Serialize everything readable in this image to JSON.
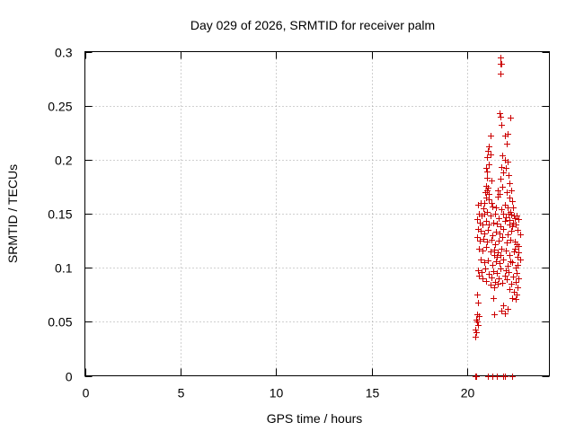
{
  "chart_data": {
    "type": "scatter",
    "title": "Day 029 of 2026, SRMTID for receiver palm",
    "xlabel": "GPS time / hours",
    "ylabel": "SRMTID / TECUs",
    "xlim": [
      0,
      24.3
    ],
    "ylim": [
      0,
      0.3
    ],
    "xticks": [
      0,
      5,
      10,
      15,
      20
    ],
    "yticks": [
      0,
      0.05,
      0.1,
      0.15,
      0.2,
      0.25,
      0.3
    ],
    "xtick_labels": [
      "0",
      "5",
      "10",
      "15",
      "20"
    ],
    "ytick_labels": [
      "0",
      "0.05",
      "0.1",
      "0.15",
      "0.2",
      "0.25",
      "0.3"
    ],
    "grid": true,
    "legend": "none",
    "marker": "+",
    "marker_color": "#cc0000",
    "series": [
      {
        "name": "SRMTID",
        "points": [
          [
            20.4,
            0.0
          ],
          [
            20.45,
            0.0
          ],
          [
            21.3,
            0.0
          ],
          [
            21.55,
            0.0
          ],
          [
            21.9,
            0.0
          ],
          [
            21.95,
            0.0
          ],
          [
            22.35,
            0.0
          ],
          [
            21.1,
            0.0
          ],
          [
            21.75,
            0.295
          ],
          [
            21.78,
            0.289
          ],
          [
            21.72,
            0.289
          ],
          [
            21.75,
            0.28
          ],
          [
            21.7,
            0.243
          ],
          [
            21.75,
            0.24
          ],
          [
            22.25,
            0.239
          ],
          [
            21.8,
            0.232
          ],
          [
            22.1,
            0.224
          ],
          [
            21.95,
            0.222
          ],
          [
            21.2,
            0.222
          ],
          [
            22.05,
            0.215
          ],
          [
            21.15,
            0.212
          ],
          [
            21.1,
            0.208
          ],
          [
            21.2,
            0.205
          ],
          [
            21.05,
            0.202
          ],
          [
            21.85,
            0.204
          ],
          [
            21.95,
            0.2
          ],
          [
            21.12,
            0.196
          ],
          [
            22.1,
            0.198
          ],
          [
            21.0,
            0.192
          ],
          [
            21.05,
            0.189
          ],
          [
            21.8,
            0.193
          ],
          [
            22.0,
            0.192
          ],
          [
            21.9,
            0.188
          ],
          [
            22.15,
            0.186
          ],
          [
            21.75,
            0.182
          ],
          [
            21.25,
            0.181
          ],
          [
            21.0,
            0.176
          ],
          [
            21.1,
            0.174
          ],
          [
            21.05,
            0.172
          ],
          [
            20.95,
            0.17
          ],
          [
            22.2,
            0.178
          ],
          [
            21.85,
            0.175
          ],
          [
            22.3,
            0.172
          ],
          [
            21.7,
            0.168
          ],
          [
            21.0,
            0.165
          ],
          [
            21.15,
            0.163
          ],
          [
            20.9,
            0.16
          ],
          [
            21.6,
            0.166
          ],
          [
            22.2,
            0.165
          ],
          [
            22.35,
            0.162
          ],
          [
            21.95,
            0.158
          ],
          [
            22.1,
            0.156
          ],
          [
            20.55,
            0.158
          ],
          [
            20.7,
            0.16
          ],
          [
            20.85,
            0.155
          ],
          [
            21.3,
            0.157
          ],
          [
            21.5,
            0.156
          ],
          [
            21.8,
            0.154
          ],
          [
            22.4,
            0.156
          ],
          [
            22.25,
            0.152
          ],
          [
            20.6,
            0.15
          ],
          [
            20.75,
            0.148
          ],
          [
            20.9,
            0.15
          ],
          [
            21.05,
            0.152
          ],
          [
            21.2,
            0.148
          ],
          [
            21.45,
            0.15
          ],
          [
            21.65,
            0.146
          ],
          [
            21.9,
            0.15
          ],
          [
            22.0,
            0.147
          ],
          [
            22.15,
            0.15
          ],
          [
            22.3,
            0.149
          ],
          [
            22.45,
            0.148
          ],
          [
            22.6,
            0.148
          ],
          [
            22.5,
            0.146
          ],
          [
            20.5,
            0.145
          ],
          [
            20.65,
            0.142
          ],
          [
            20.8,
            0.14
          ],
          [
            21.0,
            0.143
          ],
          [
            21.15,
            0.14
          ],
          [
            21.35,
            0.142
          ],
          [
            21.55,
            0.141
          ],
          [
            21.75,
            0.138
          ],
          [
            21.95,
            0.143
          ],
          [
            22.2,
            0.14
          ],
          [
            22.4,
            0.142
          ],
          [
            22.55,
            0.14
          ],
          [
            22.7,
            0.145
          ],
          [
            20.55,
            0.136
          ],
          [
            20.7,
            0.134
          ],
          [
            20.9,
            0.132
          ],
          [
            21.1,
            0.135
          ],
          [
            21.3,
            0.13
          ],
          [
            21.5,
            0.133
          ],
          [
            21.7,
            0.132
          ],
          [
            21.9,
            0.136
          ],
          [
            22.1,
            0.131
          ],
          [
            22.3,
            0.134
          ],
          [
            22.65,
            0.135
          ],
          [
            22.75,
            0.131
          ],
          [
            20.5,
            0.128
          ],
          [
            20.65,
            0.125
          ],
          [
            20.85,
            0.127
          ],
          [
            21.05,
            0.124
          ],
          [
            21.25,
            0.126
          ],
          [
            21.45,
            0.122
          ],
          [
            21.65,
            0.125
          ],
          [
            21.85,
            0.128
          ],
          [
            22.05,
            0.123
          ],
          [
            22.25,
            0.126
          ],
          [
            22.5,
            0.124
          ],
          [
            22.7,
            0.12
          ],
          [
            20.6,
            0.118
          ],
          [
            20.8,
            0.116
          ],
          [
            21.0,
            0.119
          ],
          [
            21.2,
            0.115
          ],
          [
            21.4,
            0.117
          ],
          [
            21.6,
            0.114
          ],
          [
            21.8,
            0.118
          ],
          [
            22.0,
            0.116
          ],
          [
            22.2,
            0.112
          ],
          [
            22.45,
            0.115
          ],
          [
            22.65,
            0.11
          ],
          [
            22.75,
            0.108
          ],
          [
            20.7,
            0.108
          ],
          [
            20.9,
            0.105
          ],
          [
            21.1,
            0.107
          ],
          [
            21.3,
            0.103
          ],
          [
            21.5,
            0.106
          ],
          [
            21.7,
            0.104
          ],
          [
            21.9,
            0.108
          ],
          [
            22.1,
            0.102
          ],
          [
            22.35,
            0.105
          ],
          [
            22.55,
            0.1
          ],
          [
            22.65,
            0.103
          ],
          [
            20.55,
            0.098
          ],
          [
            20.75,
            0.096
          ],
          [
            20.95,
            0.099
          ],
          [
            21.15,
            0.094
          ],
          [
            21.35,
            0.097
          ],
          [
            21.55,
            0.095
          ],
          [
            21.75,
            0.099
          ],
          [
            21.95,
            0.093
          ],
          [
            22.15,
            0.096
          ],
          [
            22.4,
            0.092
          ],
          [
            22.6,
            0.095
          ],
          [
            22.7,
            0.09
          ],
          [
            20.6,
            0.093
          ],
          [
            20.8,
            0.09
          ],
          [
            21.0,
            0.088
          ],
          [
            21.25,
            0.091
          ],
          [
            21.45,
            0.087
          ],
          [
            21.65,
            0.09
          ],
          [
            21.85,
            0.086
          ],
          [
            22.05,
            0.089
          ],
          [
            22.3,
            0.085
          ],
          [
            22.55,
            0.087
          ],
          [
            22.65,
            0.082
          ],
          [
            21.2,
            0.084
          ],
          [
            21.4,
            0.082
          ],
          [
            21.6,
            0.085
          ],
          [
            22.2,
            0.08
          ],
          [
            22.45,
            0.078
          ],
          [
            22.6,
            0.075
          ],
          [
            20.5,
            0.075
          ],
          [
            21.35,
            0.072
          ],
          [
            22.35,
            0.072
          ],
          [
            22.55,
            0.071
          ],
          [
            20.55,
            0.068
          ],
          [
            21.9,
            0.065
          ],
          [
            22.1,
            0.062
          ],
          [
            21.8,
            0.06
          ],
          [
            21.95,
            0.058
          ],
          [
            21.4,
            0.057
          ],
          [
            20.5,
            0.057
          ],
          [
            20.6,
            0.055
          ],
          [
            20.45,
            0.052
          ],
          [
            20.5,
            0.05
          ],
          [
            20.55,
            0.047
          ],
          [
            20.4,
            0.043
          ],
          [
            20.45,
            0.04
          ],
          [
            20.4,
            0.036
          ],
          [
            21.05,
            0.183
          ],
          [
            21.15,
            0.168
          ],
          [
            21.25,
            0.16
          ],
          [
            21.6,
            0.172
          ],
          [
            22.05,
            0.17
          ],
          [
            22.2,
            0.144
          ],
          [
            22.35,
            0.138
          ],
          [
            21.4,
            0.112
          ],
          [
            21.55,
            0.11
          ],
          [
            21.75,
            0.112
          ],
          [
            22.0,
            0.098
          ],
          [
            22.25,
            0.106
          ],
          [
            22.5,
            0.118
          ],
          [
            22.6,
            0.122
          ],
          [
            22.7,
            0.114
          ]
        ]
      }
    ]
  }
}
